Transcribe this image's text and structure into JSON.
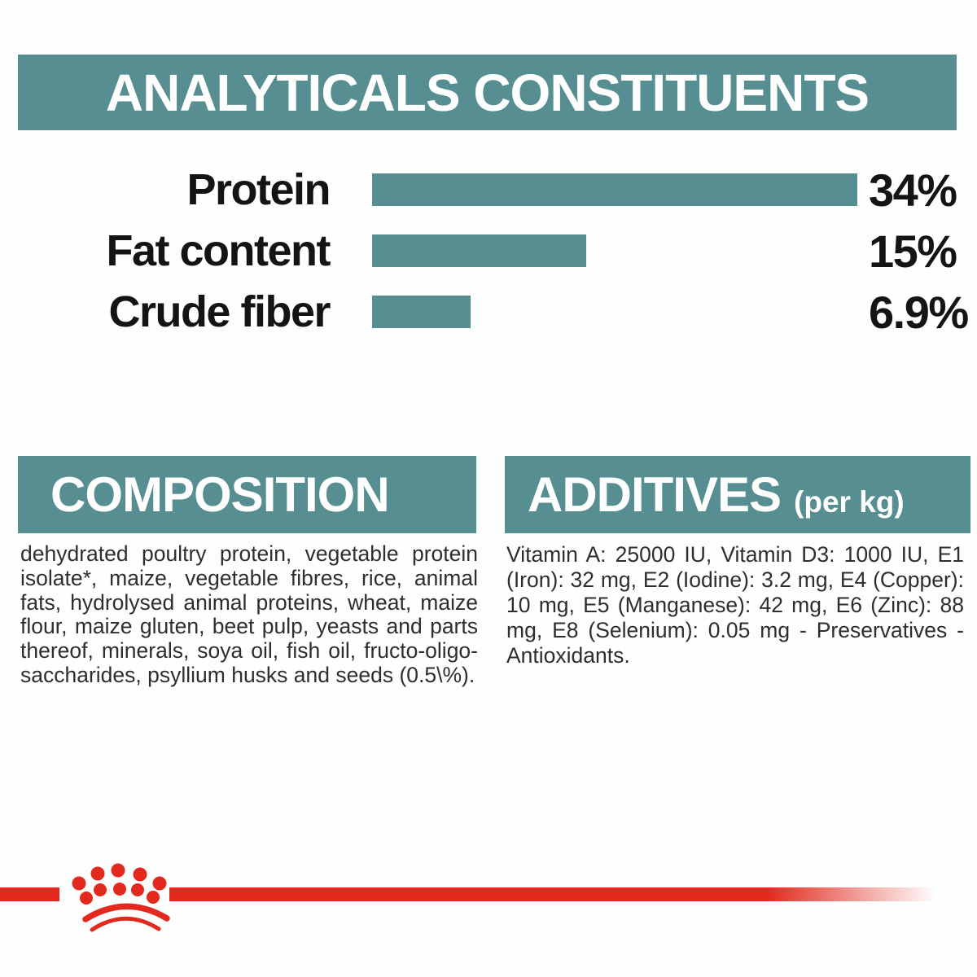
{
  "colors": {
    "teal": "#578e91",
    "red": "#e3291e",
    "heading_text": "#ffffff",
    "label_text": "#141414",
    "body_text": "#2e2e2e",
    "background": "#fdfefe"
  },
  "header": {
    "title": "ANALYTICALS CONSTITUENTS"
  },
  "chart_data": {
    "type": "bar",
    "orientation": "horizontal",
    "title": "ANALYTICALS CONSTITUENTS",
    "categories": [
      "Protein",
      "Fat content",
      "Crude fiber"
    ],
    "values": [
      34,
      15,
      6.9
    ],
    "value_labels": [
      "34%",
      "15%",
      "6.9%"
    ],
    "xlim": [
      0,
      34
    ],
    "bar_color": "#578e91",
    "grid": false,
    "legend": false
  },
  "composition": {
    "title": "COMPOSITION",
    "body": "dehydrated poultry protein, vegetable protein isolate*, maize, vegetable fibres, rice, animal fats, hydrolysed animal proteins, wheat, maize flour, maize gluten, beet pulp, yeasts and parts thereof, minerals, soya oil, fish oil, fructo-oligo-saccharides, psyllium husks and seeds (0.5\\%)."
  },
  "additives": {
    "title": "ADDITIVES",
    "unit_note": "(per kg)",
    "body": "Vitamin A: 25000 IU, Vitamin D3: 1000 IU, E1 (Iron): 32 mg, E2 (Iodine): 3.2 mg, E4 (Copper): 10 mg, E5 (Manganese): 42 mg, E6 (Zinc): 88 mg, E8 (Selenium): 0.05 mg - Preservatives - Antioxidants."
  },
  "footer": {
    "logo": "royal-canin-crown"
  }
}
